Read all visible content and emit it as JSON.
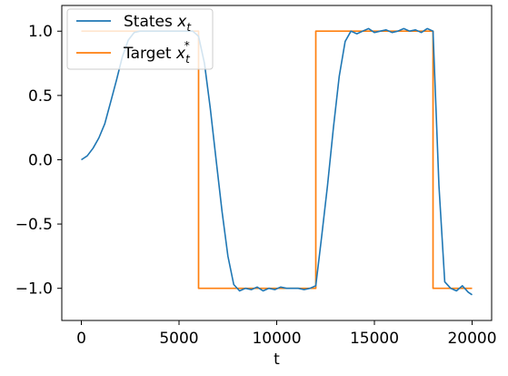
{
  "chart_data": {
    "type": "line",
    "xlabel": "t",
    "ylabel": "",
    "xlim": [
      -1000,
      21000
    ],
    "ylim": [
      -1.25,
      1.2
    ],
    "x_ticks": [
      0,
      5000,
      10000,
      15000,
      20000
    ],
    "x_tick_labels": [
      "0",
      "5000",
      "10000",
      "15000",
      "20000"
    ],
    "y_ticks": [
      -1.0,
      -0.5,
      0.0,
      0.5,
      1.0
    ],
    "y_tick_labels": [
      "−1.0",
      "−0.5",
      "0.0",
      "0.5",
      "1.0"
    ],
    "grid": false,
    "legend": {
      "location": "top-left",
      "entries": [
        {
          "label_text": "States ",
          "label_var": "x",
          "label_sub": "t",
          "label_sup": "",
          "color": "#1f77b4"
        },
        {
          "label_text": "Target ",
          "label_var": "x",
          "label_sub": "t",
          "label_sup": "*",
          "color": "#ff7f0e"
        }
      ]
    },
    "series": [
      {
        "name": "States x_t",
        "color": "#1f77b4",
        "x": [
          0,
          300,
          600,
          900,
          1200,
          1500,
          1800,
          2100,
          2400,
          2700,
          3000,
          3300,
          3600,
          3900,
          4200,
          4500,
          4800,
          5100,
          5400,
          5700,
          6000,
          6300,
          6600,
          6900,
          7200,
          7500,
          7800,
          8100,
          8400,
          8700,
          9000,
          9300,
          9600,
          9900,
          10200,
          10500,
          10800,
          11100,
          11400,
          11700,
          12000,
          12300,
          12600,
          12900,
          13200,
          13500,
          13800,
          14100,
          14400,
          14700,
          15000,
          15300,
          15600,
          15900,
          16200,
          16500,
          16800,
          17100,
          17400,
          17700,
          18000,
          18300,
          18600,
          18900,
          19200,
          19500,
          19800,
          20000
        ],
        "y": [
          0.0,
          0.03,
          0.09,
          0.17,
          0.28,
          0.45,
          0.62,
          0.8,
          0.93,
          0.99,
          1.0,
          1.0,
          1.0,
          1.0,
          1.0,
          1.0,
          1.0,
          1.0,
          1.0,
          1.0,
          0.96,
          0.75,
          0.4,
          0.0,
          -0.4,
          -0.75,
          -0.97,
          -1.02,
          -1.0,
          -1.01,
          -0.99,
          -1.02,
          -1.0,
          -1.01,
          -0.99,
          -1.0,
          -1.0,
          -1.0,
          -1.01,
          -1.0,
          -0.98,
          -0.6,
          -0.2,
          0.25,
          0.65,
          0.92,
          1.0,
          0.98,
          1.0,
          1.02,
          0.99,
          1.0,
          1.01,
          0.99,
          1.0,
          1.02,
          1.0,
          1.01,
          0.99,
          1.02,
          1.0,
          -0.2,
          -0.95,
          -1.0,
          -1.02,
          -0.98,
          -1.03,
          -1.05
        ]
      },
      {
        "name": "Target x_t*",
        "color": "#ff7f0e",
        "x": [
          0,
          6000,
          6000,
          12000,
          12000,
          18000,
          18000,
          20000
        ],
        "y": [
          1.0,
          1.0,
          -1.0,
          -1.0,
          1.0,
          1.0,
          -1.0,
          -1.0
        ]
      }
    ]
  }
}
